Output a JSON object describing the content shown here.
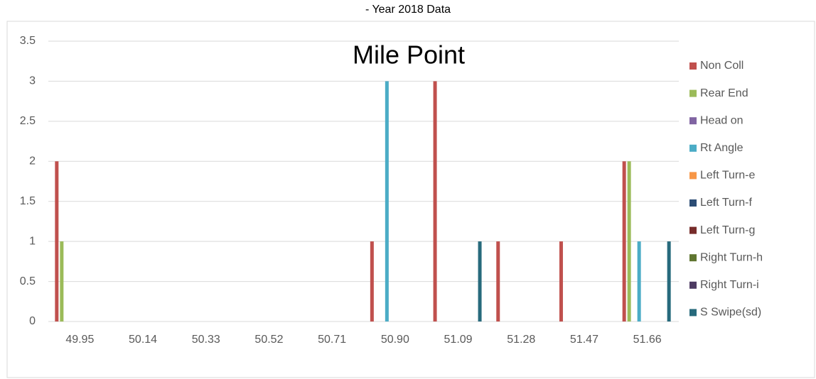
{
  "chart_data": {
    "type": "bar",
    "title": "- Year 2018 Data",
    "subtitle": "Mile Point",
    "categories": [
      "49.95",
      "50.14",
      "50.33",
      "50.52",
      "50.71",
      "50.90",
      "51.09",
      "51.28",
      "51.47",
      "51.66"
    ],
    "series": [
      {
        "name": "Non Coll",
        "color": "#c0504d",
        "values": [
          2,
          0,
          0,
          0,
          0,
          1,
          3,
          1,
          1,
          2
        ]
      },
      {
        "name": "Rear End",
        "color": "#9bbb59",
        "values": [
          1,
          0,
          0,
          0,
          0,
          0,
          0,
          0,
          0,
          2
        ]
      },
      {
        "name": "Head on",
        "color": "#8064a2",
        "values": [
          0,
          0,
          0,
          0,
          0,
          0,
          0,
          0,
          0,
          0
        ]
      },
      {
        "name": "Rt Angle",
        "color": "#4bacc6",
        "values": [
          0,
          0,
          0,
          0,
          0,
          3,
          0,
          0,
          0,
          1
        ]
      },
      {
        "name": "Left Turn-e",
        "color": "#f79646",
        "values": [
          0,
          0,
          0,
          0,
          0,
          0,
          0,
          0,
          0,
          0
        ]
      },
      {
        "name": "Left Turn-f",
        "color": "#2c4d75",
        "values": [
          0,
          0,
          0,
          0,
          0,
          0,
          0,
          0,
          0,
          0
        ]
      },
      {
        "name": "Left Turn-g",
        "color": "#772c2a",
        "values": [
          0,
          0,
          0,
          0,
          0,
          0,
          0,
          0,
          0,
          0
        ]
      },
      {
        "name": "Right Turn-h",
        "color": "#5f7530",
        "values": [
          0,
          0,
          0,
          0,
          0,
          0,
          0,
          0,
          0,
          0
        ]
      },
      {
        "name": "Right Turn-i",
        "color": "#4d3b62",
        "values": [
          0,
          0,
          0,
          0,
          0,
          0,
          0,
          0,
          0,
          0
        ]
      },
      {
        "name": "S Swipe(sd)",
        "color": "#276a7c",
        "values": [
          0,
          0,
          0,
          0,
          0,
          0,
          1,
          0,
          0,
          1
        ]
      }
    ],
    "ylim": [
      0,
      3.5
    ],
    "yticks": [
      0,
      0.5,
      1,
      1.5,
      2,
      2.5,
      3,
      3.5
    ],
    "grid": true,
    "legend": "right"
  }
}
